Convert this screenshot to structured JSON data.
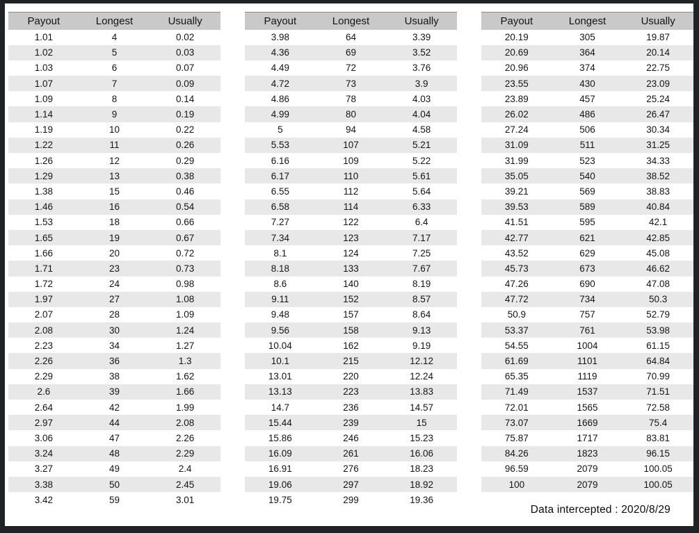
{
  "footer": {
    "label": "Data intercepted : 2020/8/29"
  },
  "colors": {
    "frame": "#202225",
    "page_background": "#ffffff",
    "header_background": "#c9c9c9",
    "stripe_background": "#e8e8e8",
    "text": "#141414"
  },
  "chart_data": [
    {
      "type": "table",
      "title": "",
      "columns": [
        "Payout",
        "Longest",
        "Usually"
      ],
      "rows": [
        [
          "1.01",
          "4",
          "0.02"
        ],
        [
          "1.02",
          "5",
          "0.03"
        ],
        [
          "1.03",
          "6",
          "0.07"
        ],
        [
          "1.07",
          "7",
          "0.09"
        ],
        [
          "1.09",
          "8",
          "0.14"
        ],
        [
          "1.14",
          "9",
          "0.19"
        ],
        [
          "1.19",
          "10",
          "0.22"
        ],
        [
          "1.22",
          "11",
          "0.26"
        ],
        [
          "1.26",
          "12",
          "0.29"
        ],
        [
          "1.29",
          "13",
          "0.38"
        ],
        [
          "1.38",
          "15",
          "0.46"
        ],
        [
          "1.46",
          "16",
          "0.54"
        ],
        [
          "1.53",
          "18",
          "0.66"
        ],
        [
          "1.65",
          "19",
          "0.67"
        ],
        [
          "1.66",
          "20",
          "0.72"
        ],
        [
          "1.71",
          "23",
          "0.73"
        ],
        [
          "1.72",
          "24",
          "0.98"
        ],
        [
          "1.97",
          "27",
          "1.08"
        ],
        [
          "2.07",
          "28",
          "1.09"
        ],
        [
          "2.08",
          "30",
          "1.24"
        ],
        [
          "2.23",
          "34",
          "1.27"
        ],
        [
          "2.26",
          "36",
          "1.3"
        ],
        [
          "2.29",
          "38",
          "1.62"
        ],
        [
          "2.6",
          "39",
          "1.66"
        ],
        [
          "2.64",
          "42",
          "1.99"
        ],
        [
          "2.97",
          "44",
          "2.08"
        ],
        [
          "3.06",
          "47",
          "2.26"
        ],
        [
          "3.24",
          "48",
          "2.29"
        ],
        [
          "3.27",
          "49",
          "2.4"
        ],
        [
          "3.38",
          "50",
          "2.45"
        ],
        [
          "3.42",
          "59",
          "3.01"
        ]
      ]
    },
    {
      "type": "table",
      "title": "",
      "columns": [
        "Payout",
        "Longest",
        "Usually"
      ],
      "rows": [
        [
          "3.98",
          "64",
          "3.39"
        ],
        [
          "4.36",
          "69",
          "3.52"
        ],
        [
          "4.49",
          "72",
          "3.76"
        ],
        [
          "4.72",
          "73",
          "3.9"
        ],
        [
          "4.86",
          "78",
          "4.03"
        ],
        [
          "4.99",
          "80",
          "4.04"
        ],
        [
          "5",
          "94",
          "4.58"
        ],
        [
          "5.53",
          "107",
          "5.21"
        ],
        [
          "6.16",
          "109",
          "5.22"
        ],
        [
          "6.17",
          "110",
          "5.61"
        ],
        [
          "6.55",
          "112",
          "5.64"
        ],
        [
          "6.58",
          "114",
          "6.33"
        ],
        [
          "7.27",
          "122",
          "6.4"
        ],
        [
          "7.34",
          "123",
          "7.17"
        ],
        [
          "8.1",
          "124",
          "7.25"
        ],
        [
          "8.18",
          "133",
          "7.67"
        ],
        [
          "8.6",
          "140",
          "8.19"
        ],
        [
          "9.11",
          "152",
          "8.57"
        ],
        [
          "9.48",
          "157",
          "8.64"
        ],
        [
          "9.56",
          "158",
          "9.13"
        ],
        [
          "10.04",
          "162",
          "9.19"
        ],
        [
          "10.1",
          "215",
          "12.12"
        ],
        [
          "13.01",
          "220",
          "12.24"
        ],
        [
          "13.13",
          "223",
          "13.83"
        ],
        [
          "14.7",
          "236",
          "14.57"
        ],
        [
          "15.44",
          "239",
          "15"
        ],
        [
          "15.86",
          "246",
          "15.23"
        ],
        [
          "16.09",
          "261",
          "16.06"
        ],
        [
          "16.91",
          "276",
          "18.23"
        ],
        [
          "19.06",
          "297",
          "18.92"
        ],
        [
          "19.75",
          "299",
          "19.36"
        ]
      ]
    },
    {
      "type": "table",
      "title": "",
      "columns": [
        "Payout",
        "Longest",
        "Usually"
      ],
      "rows": [
        [
          "20.19",
          "305",
          "19.87"
        ],
        [
          "20.69",
          "364",
          "20.14"
        ],
        [
          "20.96",
          "374",
          "22.75"
        ],
        [
          "23.55",
          "430",
          "23.09"
        ],
        [
          "23.89",
          "457",
          "25.24"
        ],
        [
          "26.02",
          "486",
          "26.47"
        ],
        [
          "27.24",
          "506",
          "30.34"
        ],
        [
          "31.09",
          "511",
          "31.25"
        ],
        [
          "31.99",
          "523",
          "34.33"
        ],
        [
          "35.05",
          "540",
          "38.52"
        ],
        [
          "39.21",
          "569",
          "38.83"
        ],
        [
          "39.53",
          "589",
          "40.84"
        ],
        [
          "41.51",
          "595",
          "42.1"
        ],
        [
          "42.77",
          "621",
          "42.85"
        ],
        [
          "43.52",
          "629",
          "45.08"
        ],
        [
          "45.73",
          "673",
          "46.62"
        ],
        [
          "47.26",
          "690",
          "47.08"
        ],
        [
          "47.72",
          "734",
          "50.3"
        ],
        [
          "50.9",
          "757",
          "52.79"
        ],
        [
          "53.37",
          "761",
          "53.98"
        ],
        [
          "54.55",
          "1004",
          "61.15"
        ],
        [
          "61.69",
          "1101",
          "64.84"
        ],
        [
          "65.35",
          "1119",
          "70.99"
        ],
        [
          "71.49",
          "1537",
          "71.51"
        ],
        [
          "72.01",
          "1565",
          "72.58"
        ],
        [
          "73.07",
          "1669",
          "75.4"
        ],
        [
          "75.87",
          "1717",
          "83.81"
        ],
        [
          "84.26",
          "1823",
          "96.15"
        ],
        [
          "96.59",
          "2079",
          "100.05"
        ],
        [
          "100",
          "2079",
          "100.05"
        ]
      ]
    }
  ]
}
